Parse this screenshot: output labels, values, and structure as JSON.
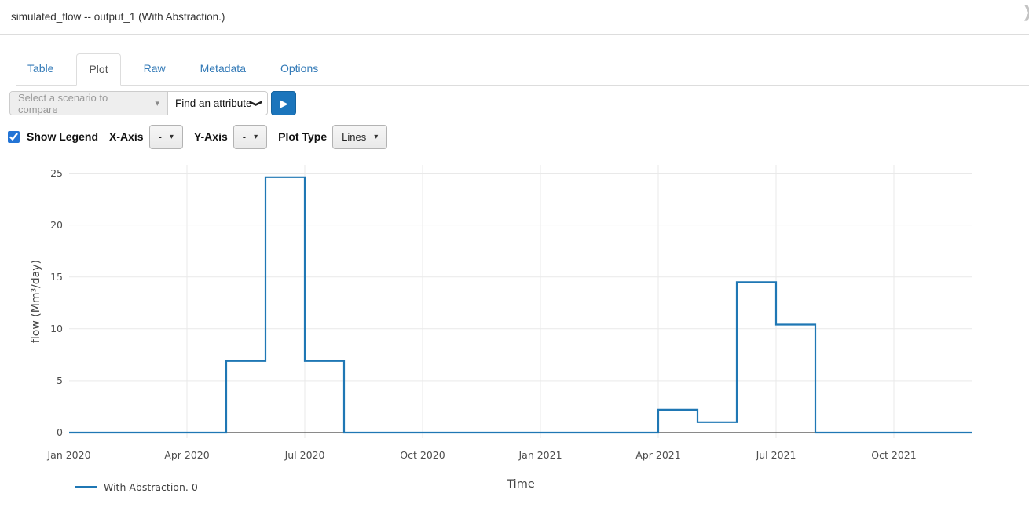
{
  "header": {
    "title": "simulated_flow -- output_1 (With Abstraction.)",
    "collapse_icon": "❯"
  },
  "tabs": [
    {
      "label": "Table",
      "active": false
    },
    {
      "label": "Plot",
      "active": true
    },
    {
      "label": "Raw",
      "active": false
    },
    {
      "label": "Metadata",
      "active": false
    },
    {
      "label": "Options",
      "active": false
    }
  ],
  "toolbar": {
    "scenario_select": {
      "placeholder": "Select a scenario to compare",
      "caret": "▾"
    },
    "attribute_button": {
      "label": "Find an attribute",
      "chevron": "❯"
    },
    "run_button": {
      "icon": "▶"
    }
  },
  "controls": {
    "show_legend": {
      "label": "Show Legend",
      "checked": true
    },
    "x_axis": {
      "label": "X-Axis",
      "value": "-",
      "caret": "▾"
    },
    "y_axis": {
      "label": "Y-Axis",
      "value": "-",
      "caret": "▾"
    },
    "plot_type": {
      "label": "Plot Type",
      "value": "Lines",
      "caret": "▾"
    }
  },
  "chart_data": {
    "type": "line",
    "line_shape": "step-after",
    "title": "",
    "xlabel": "Time",
    "ylabel": "flow (Mm³/day)",
    "x": [
      "Jan 2020",
      "Feb 2020",
      "Mar 2020",
      "Apr 2020",
      "May 2020",
      "Jun 2020",
      "Jul 2020",
      "Aug 2020",
      "Sep 2020",
      "Oct 2020",
      "Nov 2020",
      "Dec 2020",
      "Jan 2021",
      "Feb 2021",
      "Mar 2021",
      "Apr 2021",
      "May 2021",
      "Jun 2021",
      "Jul 2021",
      "Aug 2021",
      "Sep 2021",
      "Oct 2021",
      "Nov 2021",
      "Dec 2021"
    ],
    "x_tick_every": 3,
    "series": [
      {
        "name": "With Abstraction. 0",
        "color": "#1f77b4",
        "values": [
          0,
          0,
          0,
          0,
          6.9,
          24.6,
          6.9,
          0,
          0,
          0,
          0,
          0,
          0,
          0,
          0,
          2.2,
          1.0,
          14.5,
          10.4,
          0,
          0,
          0,
          0,
          0
        ]
      }
    ],
    "ylim": [
      0,
      25.7
    ],
    "yticks": [
      0,
      5,
      10,
      15,
      20,
      25
    ],
    "grid": true,
    "legend": {
      "visible": true,
      "position": "bottom-left"
    }
  }
}
